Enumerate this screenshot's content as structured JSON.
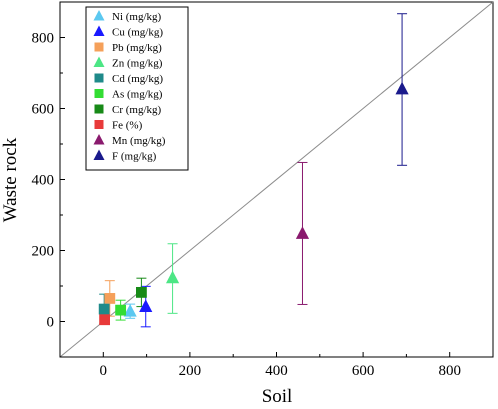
{
  "chart_data": {
    "type": "scatter",
    "xlabel": "Soil",
    "ylabel": "Waste rock",
    "xlim": [
      -100,
      900
    ],
    "ylim": [
      -100,
      900
    ],
    "xticks": [
      0,
      200,
      400,
      600,
      800
    ],
    "yticks": [
      0,
      200,
      400,
      600,
      800
    ],
    "grid": false,
    "legend_position": "top-left",
    "reference_line": "y = x",
    "series": [
      {
        "name": "Ni (mg/kg)",
        "marker": "triangle",
        "color": "#5bc8f0",
        "x": 62,
        "y": 29,
        "yerr": [
          20,
          20
        ]
      },
      {
        "name": "Cu (mg/kg)",
        "marker": "triangle",
        "color": "#1a1aff",
        "x": 98,
        "y": 42,
        "yerr": [
          57,
          57
        ]
      },
      {
        "name": "Pb (mg/kg)",
        "marker": "square",
        "color": "#f5a05a",
        "x": 15,
        "y": 65,
        "yerr": [
          50,
          50
        ]
      },
      {
        "name": "Zn (mg/kg)",
        "marker": "triangle",
        "color": "#4ce685",
        "x": 160,
        "y": 123,
        "yerr": [
          100,
          96
        ]
      },
      {
        "name": "Cd (mg/kg)",
        "marker": "square",
        "color": "#1f8a8a",
        "x": 2,
        "y": 35,
        "yerr": [
          42,
          42
        ]
      },
      {
        "name": "As (mg/kg)",
        "marker": "square",
        "color": "#33dd33",
        "x": 40,
        "y": 32,
        "yerr": [
          28,
          28
        ]
      },
      {
        "name": "Cr (mg/kg)",
        "marker": "square",
        "color": "#178a17",
        "x": 88,
        "y": 82,
        "yerr": [
          40,
          40
        ]
      },
      {
        "name": "Fe (%)",
        "marker": "square",
        "color": "#e83a3a",
        "x": 3,
        "y": 5,
        "yerr": [
          3,
          3
        ]
      },
      {
        "name": "Mn (mg/kg)",
        "marker": "triangle",
        "color": "#8a1a6e",
        "x": 460,
        "y": 248,
        "yerr": [
          200,
          200
        ]
      },
      {
        "name": "F (mg/kg)",
        "marker": "triangle",
        "color": "#1a1a8c",
        "x": 690,
        "y": 655,
        "yerr": [
          215,
          212
        ]
      }
    ]
  }
}
